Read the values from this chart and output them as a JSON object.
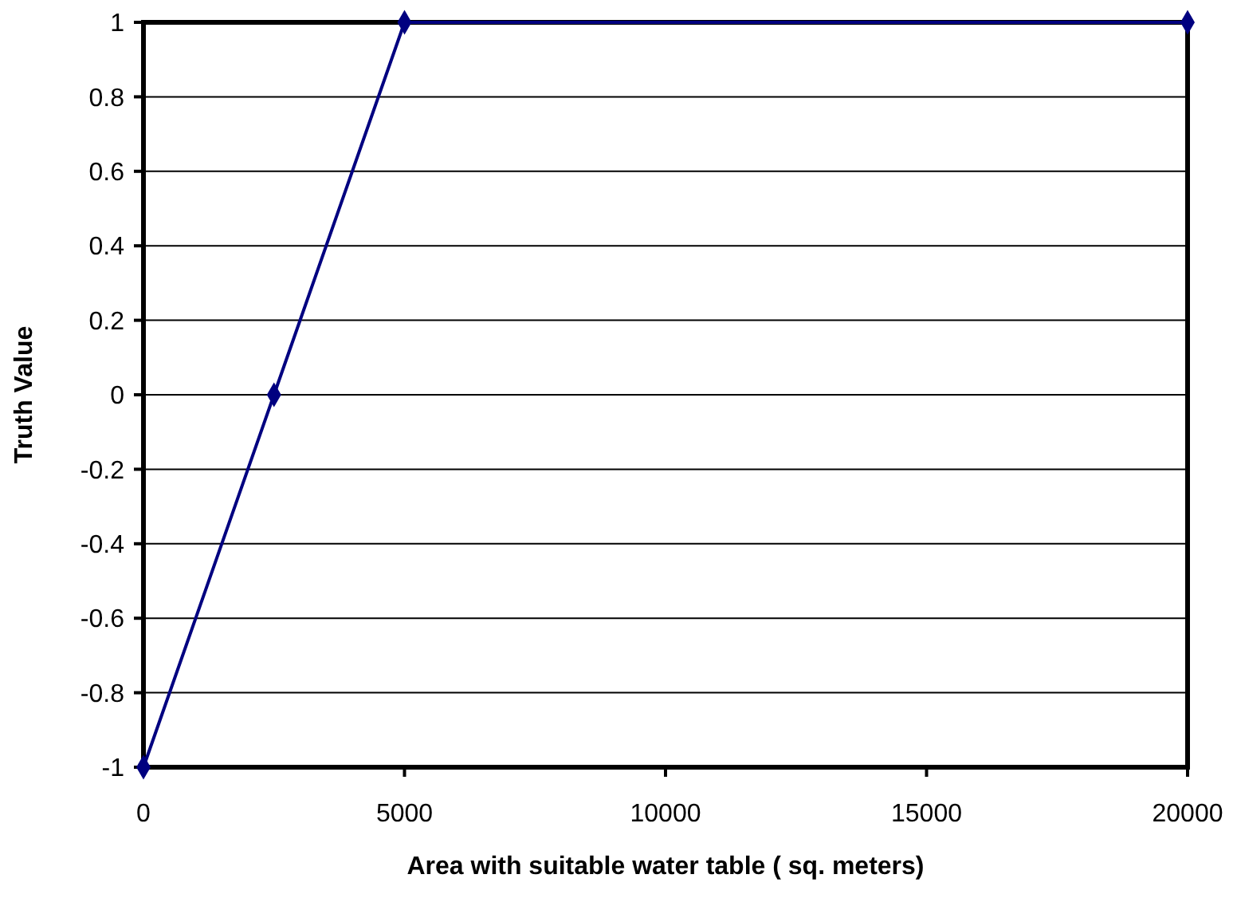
{
  "chart_data": {
    "type": "line",
    "xlabel": "Area with suitable water table ( sq. meters)",
    "ylabel": "Truth Value",
    "x": [
      0,
      2500,
      5000,
      20000
    ],
    "series": [
      {
        "color": "#000080",
        "values": [
          -1,
          0,
          1,
          1
        ]
      }
    ],
    "xlim": [
      0,
      20000
    ],
    "xticks": [
      0,
      5000,
      10000,
      15000,
      20000
    ],
    "ylim": [
      -1,
      1
    ],
    "yticks": [
      -1,
      -0.8,
      -0.6,
      -0.4,
      -0.2,
      0,
      0.2,
      0.4,
      0.6,
      0.8,
      1
    ],
    "grid": "y",
    "marker": "diamond",
    "line_style": "solid"
  }
}
